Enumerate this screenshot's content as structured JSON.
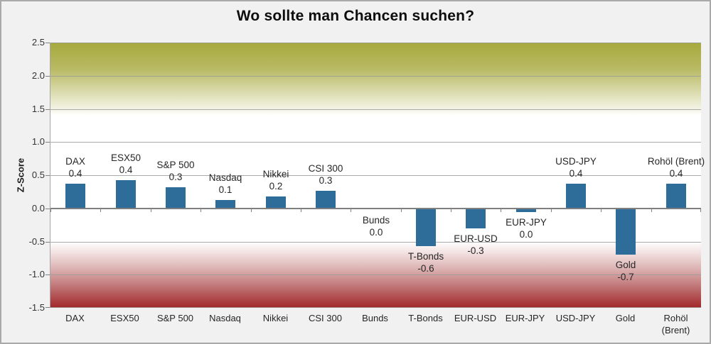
{
  "chart_data": {
    "type": "bar",
    "title": "Wo sollte man Chancen suchen?",
    "ylabel": "Z-Score",
    "xlabel": "",
    "ylim": [
      -1.5,
      2.5
    ],
    "ytick_labels": [
      "2.5",
      "2.0",
      "1.5",
      "1.0",
      "0.5",
      "0.0",
      "-0.5",
      "-1.0",
      "-1.5"
    ],
    "ytick_values": [
      2.5,
      2.0,
      1.5,
      1.0,
      0.5,
      0.0,
      -0.5,
      -1.0,
      -1.5
    ],
    "grid": true,
    "legend": false,
    "categories": [
      "DAX",
      "ESX50",
      "S&P 500",
      "Nasdaq",
      "Nikkei",
      "CSI 300",
      "Bunds",
      "T-Bonds",
      "EUR-USD",
      "EUR-JPY",
      "USD-JPY",
      "Gold",
      "Rohöl (Brent)"
    ],
    "values": [
      0.4,
      0.4,
      0.3,
      0.1,
      0.2,
      0.3,
      0.0,
      -0.6,
      -0.3,
      0.0,
      0.4,
      -0.7,
      0.4
    ],
    "value_labels": [
      "0.4",
      "0.4",
      "0.3",
      "0.1",
      "0.2",
      "0.3",
      "0.0",
      "-0.6",
      "-0.3",
      "0.0",
      "0.4",
      "-0.7",
      "0.4"
    ],
    "bar_heights_rendered": [
      0.37,
      0.43,
      0.32,
      0.13,
      0.18,
      0.26,
      0.0,
      -0.55,
      -0.28,
      -0.03,
      0.37,
      -0.67,
      0.37
    ],
    "colors": {
      "bar": "#2e6c99",
      "zone_top_olive": "#a6a93d",
      "zone_bottom_red": "#a32b2e",
      "gridline": "#9b9b9b",
      "zero_line": "#7f7f7f",
      "background": "#f1f1f1",
      "frame_border": "#a9a9a9",
      "text": "#262626"
    },
    "layout_hints": {
      "upper_zone": "olive gradient fading to white from y=2.5 down to about y=1.4",
      "lower_zone": "white fading to dark red from y=-0.5 down to y=-1.5",
      "data_labels": "category name over value, two centered lines next to each bar",
      "legend_position": "none"
    }
  }
}
